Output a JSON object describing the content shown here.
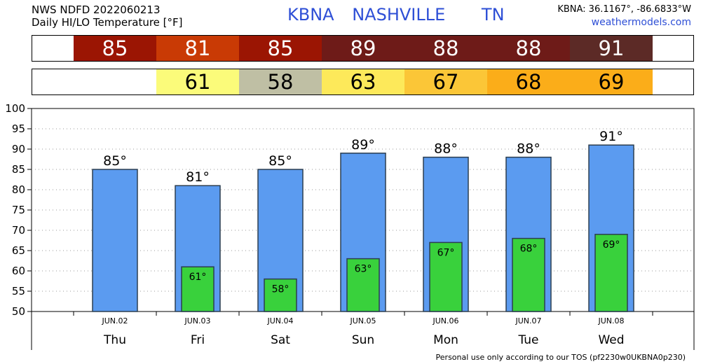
{
  "header": {
    "product": "NWS NDFD 2022060213",
    "subtitle": "Daily HI/LO Temperature [°F]",
    "station": "KBNA",
    "city": "NASHVILLE",
    "state": "TN",
    "coords": "KBNA: 36.1167°, -86.6833°W",
    "site": "weathermodels.com"
  },
  "footer": "Personal use only according to our TOS (pf2230w0UKBNA0p230)",
  "hi_strip": [
    {
      "text": "85",
      "color": "#9b1503",
      "fg": "#ffffff"
    },
    {
      "text": "81",
      "color": "#c93a05",
      "fg": "#ffffff"
    },
    {
      "text": "85",
      "color": "#9b1503",
      "fg": "#ffffff"
    },
    {
      "text": "89",
      "color": "#6e1b18",
      "fg": "#ffffff"
    },
    {
      "text": "88",
      "color": "#6e1b18",
      "fg": "#ffffff"
    },
    {
      "text": "88",
      "color": "#6e1b18",
      "fg": "#ffffff"
    },
    {
      "text": "91",
      "color": "#5c2a26",
      "fg": "#ffffff"
    }
  ],
  "lo_strip": [
    {
      "text": "",
      "color": "#ffffff",
      "fg": "#000000"
    },
    {
      "text": "61",
      "color": "#fbfb7a",
      "fg": "#000000"
    },
    {
      "text": "58",
      "color": "#bfbfa4",
      "fg": "#000000"
    },
    {
      "text": "63",
      "color": "#fde95a",
      "fg": "#000000"
    },
    {
      "text": "67",
      "color": "#fbc637",
      "fg": "#000000"
    },
    {
      "text": "68",
      "color": "#fbad19",
      "fg": "#000000"
    },
    {
      "text": "69",
      "color": "#fbad19",
      "fg": "#000000"
    }
  ],
  "chart_data": {
    "type": "bar",
    "title": "Daily HI/LO Temperature [°F]",
    "categories": [
      "Thu",
      "Fri",
      "Sat",
      "Sun",
      "Mon",
      "Tue",
      "Wed"
    ],
    "dates": [
      "JUN.02",
      "JUN.03",
      "JUN.04",
      "JUN.05",
      "JUN.06",
      "JUN.07",
      "JUN.08"
    ],
    "series": [
      {
        "name": "HI",
        "values": [
          85,
          81,
          85,
          89,
          88,
          88,
          91
        ],
        "labels": [
          "85°",
          "81°",
          "85°",
          "89°",
          "88°",
          "88°",
          "91°"
        ],
        "color": "#5b9bf0"
      },
      {
        "name": "LO",
        "values": [
          null,
          61,
          58,
          63,
          67,
          68,
          69
        ],
        "labels": [
          "",
          "61°",
          "58°",
          "63°",
          "67°",
          "68°",
          "69°"
        ],
        "color": "#39d13c"
      }
    ],
    "yticks": [
      "50",
      "55",
      "60",
      "65",
      "70",
      "75",
      "80",
      "85",
      "90",
      "95",
      "100"
    ],
    "ylim": [
      50,
      100
    ],
    "grid": true
  }
}
